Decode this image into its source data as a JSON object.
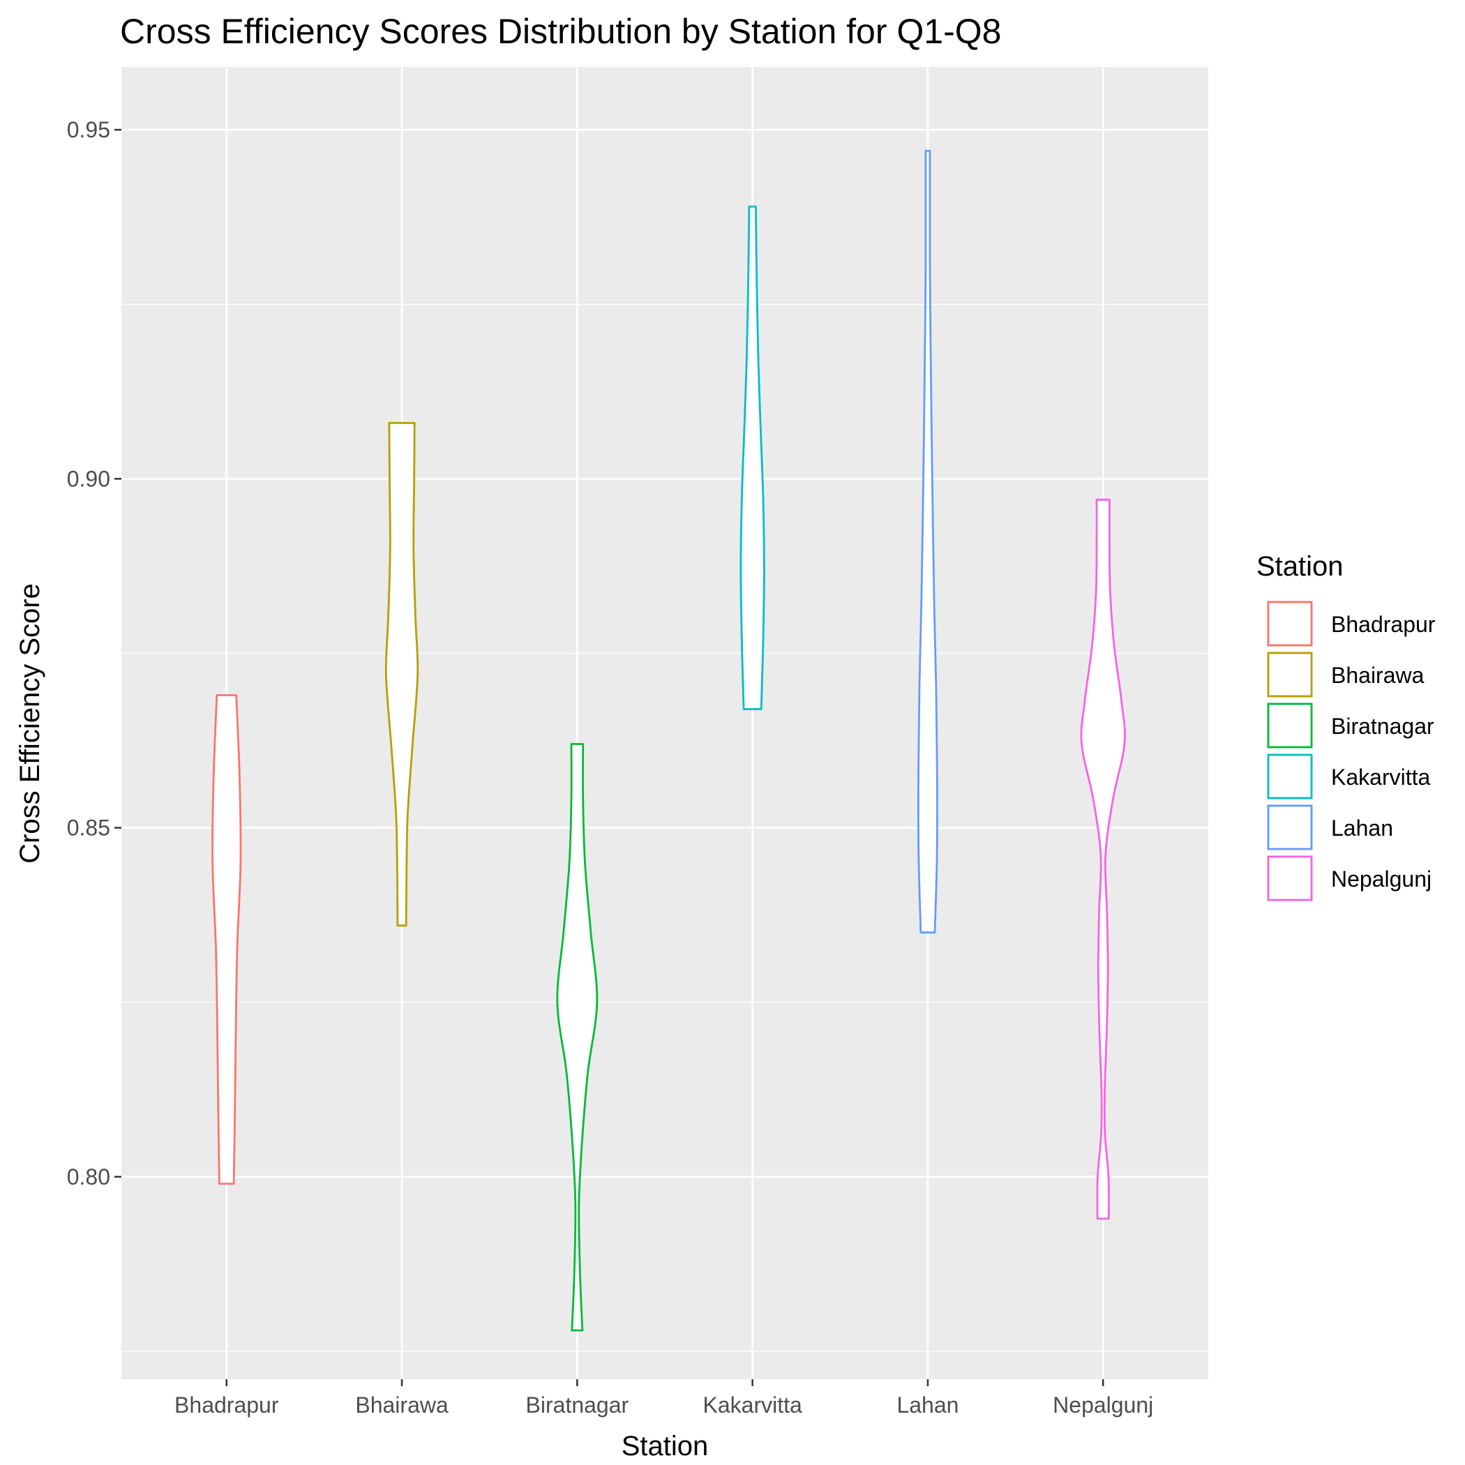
{
  "chart_data": {
    "type": "violin",
    "title": "Cross Efficiency Scores Distribution by Station for Q1-Q8",
    "xlabel": "Station",
    "ylabel": "Cross Efficiency Score",
    "ylim": [
      0.771,
      0.959
    ],
    "yticks": [
      "0.80",
      "0.85",
      "0.90",
      "0.95"
    ],
    "grid": true,
    "legend": {
      "title": "Station",
      "position": "right"
    },
    "categories": [
      "Bhadrapur",
      "Bhairawa",
      "Biratnagar",
      "Kakarvitta",
      "Lahan",
      "Nepalgunj"
    ],
    "series": [
      {
        "name": "Bhadrapur",
        "color": "#F8766D",
        "min": 0.799,
        "max": 0.869,
        "profile": [
          [
            0.799,
            0.037
          ],
          [
            0.81,
            0.043
          ],
          [
            0.822,
            0.048
          ],
          [
            0.833,
            0.055
          ],
          [
            0.845,
            0.072
          ],
          [
            0.857,
            0.067
          ],
          [
            0.869,
            0.05
          ]
        ]
      },
      {
        "name": "Bhairawa",
        "color": "#B79F00",
        "min": 0.836,
        "max": 0.908,
        "profile": [
          [
            0.836,
            0.022
          ],
          [
            0.844,
            0.024
          ],
          [
            0.852,
            0.03
          ],
          [
            0.862,
            0.055
          ],
          [
            0.872,
            0.081
          ],
          [
            0.88,
            0.07
          ],
          [
            0.89,
            0.06
          ],
          [
            0.9,
            0.063
          ],
          [
            0.908,
            0.065
          ]
        ]
      },
      {
        "name": "Biratnagar",
        "color": "#00BA38",
        "min": 0.778,
        "max": 0.862,
        "profile": [
          [
            0.778,
            0.027
          ],
          [
            0.786,
            0.015
          ],
          [
            0.796,
            0.009
          ],
          [
            0.805,
            0.025
          ],
          [
            0.815,
            0.055
          ],
          [
            0.825,
            0.102
          ],
          [
            0.835,
            0.07
          ],
          [
            0.845,
            0.04
          ],
          [
            0.854,
            0.03
          ],
          [
            0.862,
            0.03
          ]
        ]
      },
      {
        "name": "Kakarvitta",
        "color": "#00BFC4",
        "min": 0.867,
        "max": 0.939,
        "profile": [
          [
            0.867,
            0.045
          ],
          [
            0.877,
            0.055
          ],
          [
            0.887,
            0.06
          ],
          [
            0.897,
            0.055
          ],
          [
            0.907,
            0.042
          ],
          [
            0.917,
            0.03
          ],
          [
            0.928,
            0.022
          ],
          [
            0.939,
            0.017
          ]
        ]
      },
      {
        "name": "Lahan",
        "color": "#619CFF",
        "min": 0.835,
        "max": 0.947,
        "profile": [
          [
            0.835,
            0.036
          ],
          [
            0.846,
            0.047
          ],
          [
            0.858,
            0.048
          ],
          [
            0.87,
            0.043
          ],
          [
            0.882,
            0.033
          ],
          [
            0.894,
            0.026
          ],
          [
            0.906,
            0.02
          ],
          [
            0.918,
            0.015
          ],
          [
            0.93,
            0.011
          ],
          [
            0.94,
            0.011
          ],
          [
            0.947,
            0.011
          ]
        ]
      },
      {
        "name": "Nepalgunj",
        "color": "#F564E3",
        "min": 0.794,
        "max": 0.897,
        "profile": [
          [
            0.794,
            0.029
          ],
          [
            0.8,
            0.028
          ],
          [
            0.806,
            0.01
          ],
          [
            0.812,
            0.008
          ],
          [
            0.822,
            0.02
          ],
          [
            0.83,
            0.025
          ],
          [
            0.838,
            0.02
          ],
          [
            0.846,
            0.012
          ],
          [
            0.854,
            0.05
          ],
          [
            0.862,
            0.11
          ],
          [
            0.868,
            0.095
          ],
          [
            0.876,
            0.057
          ],
          [
            0.884,
            0.036
          ],
          [
            0.892,
            0.033
          ],
          [
            0.897,
            0.033
          ]
        ]
      }
    ]
  }
}
